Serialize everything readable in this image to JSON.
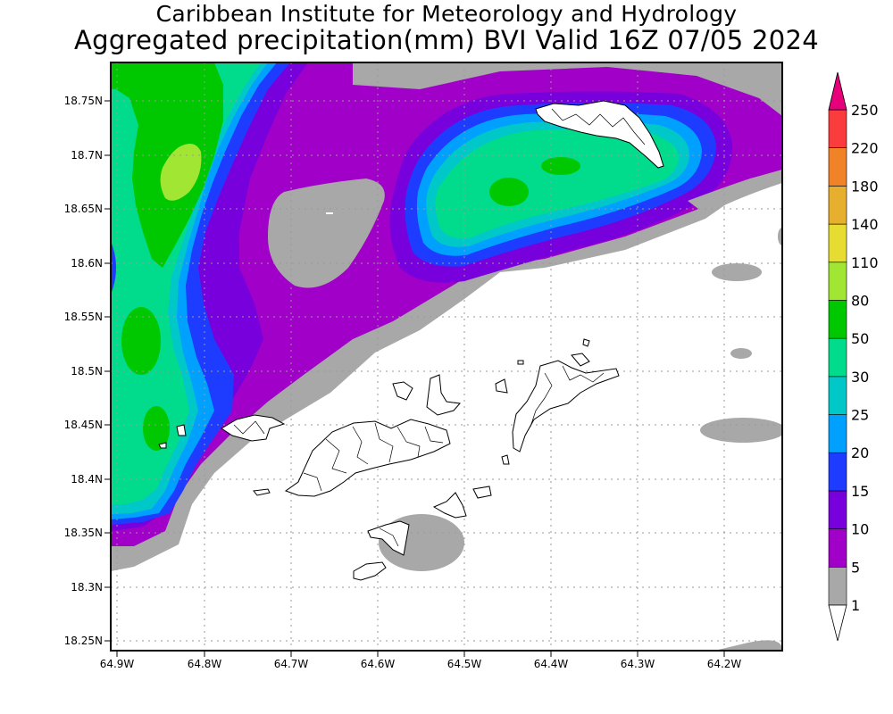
{
  "title": {
    "line1": "Caribbean Institute for Meteorology and Hydrology",
    "line2": "Aggregated precipitation(mm) BVI Valid 16Z 07/05 2024"
  },
  "axes": {
    "lat_ticks": [
      "18.75N",
      "18.7N",
      "18.65N",
      "18.6N",
      "18.55N",
      "18.5N",
      "18.45N",
      "18.4N",
      "18.35N",
      "18.3N",
      "18.25N"
    ],
    "lon_ticks": [
      "64.9W",
      "64.8W",
      "64.7W",
      "64.6W",
      "64.5W",
      "64.4W",
      "64.3W",
      "64.2W"
    ]
  },
  "colorbar": {
    "levels": [
      {
        "label": "1",
        "color": "#ffffff"
      },
      {
        "label": "5",
        "color": "#a8a8a8"
      },
      {
        "label": "10",
        "color": "#a000c8"
      },
      {
        "label": "15",
        "color": "#7800dc"
      },
      {
        "label": "20",
        "color": "#1e3cff"
      },
      {
        "label": "25",
        "color": "#00a0ff"
      },
      {
        "label": "30",
        "color": "#00c8c8"
      },
      {
        "label": "50",
        "color": "#00dc8c"
      },
      {
        "label": "80",
        "color": "#00c800"
      },
      {
        "label": "110",
        "color": "#a0e632"
      },
      {
        "label": "140",
        "color": "#e6dc32"
      },
      {
        "label": "180",
        "color": "#e6af2d"
      },
      {
        "label": "220",
        "color": "#f08228"
      },
      {
        "label": "250",
        "color": "#fa3c3c"
      }
    ],
    "top_arrow_color": "#e6007a",
    "bottom_arrow_color": "#ffffff"
  },
  "map_colors": {
    "gray": "#a8a8a8",
    "purple": "#a000c8",
    "violet": "#7800dc",
    "blue": "#1e3cff",
    "lightblue": "#00a0ff",
    "cyan": "#00c8c8",
    "green": "#00dc8c",
    "darkgreen": "#00c800",
    "lime": "#a0e632"
  }
}
